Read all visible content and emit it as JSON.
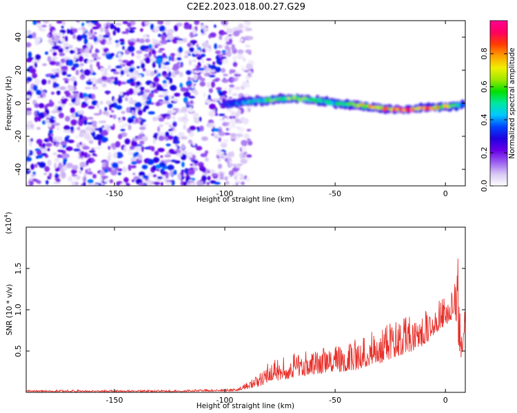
{
  "title": "C2E2.2023.018.00.27.G29",
  "chart_data": [
    {
      "type": "heatmap",
      "title": "C2E2.2023.018.00.27.G29",
      "xlabel": "Height of straight line (km)",
      "ylabel": "Frequency (Hz)",
      "xlim": [
        -190,
        9
      ],
      "ylim": [
        -50,
        50
      ],
      "x_ticks": [
        "-150",
        "-100",
        "-50",
        "0"
      ],
      "y_ticks": [
        "-40",
        "-20",
        "0",
        "20",
        "40"
      ],
      "colorbar": {
        "label": "Normalized spectral amplitude",
        "range": [
          0,
          1
        ],
        "ticks": [
          "0.0",
          "0.2",
          "0.4",
          "0.6",
          "0.8"
        ],
        "colormap": [
          "#ffffff",
          "#d8c8f4",
          "#9a5ef0",
          "#6a00e8",
          "#1f00e0",
          "#0044ff",
          "#00c8ff",
          "#00e8a0",
          "#00e000",
          "#a0e800",
          "#f0f000",
          "#ffa000",
          "#ff3c00",
          "#ff0060",
          "#ff0090"
        ]
      },
      "description_points": {
        "noise_region_x": [
          -190,
          -92
        ],
        "signal_trace": {
          "x": [
            -100,
            -90,
            -80,
            -70,
            -60,
            -50,
            -40,
            -30,
            -20,
            -10,
            0,
            8
          ],
          "y": [
            -1,
            1,
            2,
            3,
            2,
            0,
            -1,
            -3,
            -4,
            -3,
            -2,
            -1
          ],
          "peak_amplitude": [
            0.3,
            0.45,
            0.6,
            0.65,
            0.55,
            0.5,
            0.7,
            0.8,
            0.9,
            0.95,
            0.8,
            0.5
          ]
        }
      }
    },
    {
      "type": "line",
      "xlabel": "Height of straight line (km)",
      "ylabel": "SNR (10 * v/v)",
      "y_multiplier": "(x10",
      "y_multiplier_exp": "4",
      "y_multiplier_close": ")",
      "xlim": [
        -190,
        9
      ],
      "ylim": [
        0,
        2.0
      ],
      "x_ticks": [
        "-150",
        "-100",
        "-50",
        "0"
      ],
      "y_ticks": [
        "0.5",
        "1.0",
        "1.5"
      ],
      "color": "#e8302a",
      "envelope": {
        "x": [
          -190,
          -120,
          -95,
          -85,
          -80,
          -70,
          -60,
          -50,
          -40,
          -30,
          -20,
          -10,
          -5,
          0,
          4,
          6,
          7,
          8,
          9
        ],
        "base": [
          0.01,
          0.01,
          0.02,
          0.08,
          0.15,
          0.2,
          0.25,
          0.28,
          0.32,
          0.4,
          0.5,
          0.6,
          0.75,
          0.85,
          0.95,
          0.7,
          0.35,
          0.6,
          0.9
        ],
        "amp": [
          0.02,
          0.02,
          0.03,
          0.15,
          0.25,
          0.3,
          0.3,
          0.35,
          0.4,
          0.45,
          0.45,
          0.45,
          0.4,
          0.35,
          0.4,
          1.2,
          0.3,
          0.3,
          0.25
        ]
      }
    }
  ]
}
